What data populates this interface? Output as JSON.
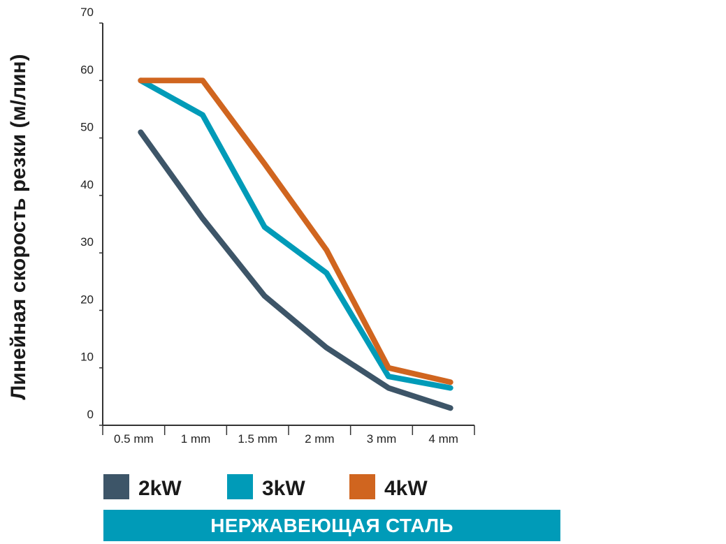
{
  "chart_data": {
    "type": "line",
    "categories": [
      "0.5 mm",
      "1 mm",
      "1.5 mm",
      "2 mm",
      "3 mm",
      "4 mm"
    ],
    "series": [
      {
        "name": "2kW",
        "color": "#3d5568",
        "values": [
          51,
          36,
          22.5,
          13.5,
          6.5,
          3
        ]
      },
      {
        "name": "3kW",
        "color": "#009bb8",
        "values": [
          60,
          54,
          34.5,
          26.5,
          8.5,
          6.5
        ]
      },
      {
        "name": "4kW",
        "color": "#d0651f",
        "values": [
          60,
          60,
          45.5,
          30.5,
          10,
          7.5
        ]
      }
    ],
    "ylabel": "Линейная скорость резки (м/лин)",
    "yticks": [
      "0",
      "10",
      "20",
      "30",
      "40",
      "50",
      "60",
      "70"
    ],
    "ylim": [
      0,
      70
    ],
    "grid": false,
    "legend_position": "bottom"
  },
  "banner": {
    "text": "НЕРЖАВЕЮЩАЯ СТАЛЬ",
    "color": "#009bb8"
  }
}
